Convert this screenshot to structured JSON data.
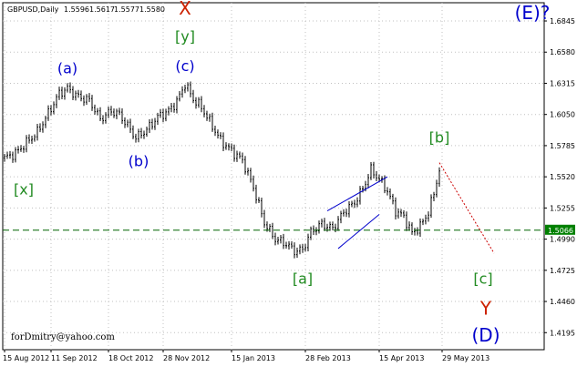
{
  "header": {
    "symbol": "GBPUSD,Daily",
    "ohlc": [
      "1.5596",
      "1.5617",
      "1.5577",
      "1.5580"
    ]
  },
  "watermark": "forDmitry@yahoo.com",
  "colors": {
    "background": "#ffffff",
    "candles": "#000000",
    "grid": "#c0c0c0",
    "support_line": "#006400",
    "projection": "#cc0000",
    "channel": "#0000cc",
    "price_badge_bg": "#008000",
    "label_blue": "#0000cc",
    "label_green": "#228b22",
    "label_red": "#cc2200"
  },
  "chart_data": {
    "type": "candlestick",
    "y_ticks": [
      "1.6845",
      "1.6580",
      "1.6315",
      "1.6050",
      "1.5785",
      "1.5520",
      "1.5255",
      "1.4990",
      "1.4725",
      "1.4460",
      "1.4195"
    ],
    "ylim": [
      1.405,
      1.7
    ],
    "x_ticks": [
      "15 Aug 2012",
      "11 Sep 2012",
      "18 Oct 2012",
      "28 Nov 2012",
      "15 Jan 2013",
      "28 Feb 2013",
      "15 Apr 2013",
      "29 May 2013"
    ],
    "x_tick_index": [
      0,
      17,
      38,
      58,
      83,
      110,
      137,
      160
    ],
    "price_path": [
      [
        0,
        1.568
      ],
      [
        4,
        1.572
      ],
      [
        8,
        1.581
      ],
      [
        12,
        1.59
      ],
      [
        16,
        1.606
      ],
      [
        20,
        1.623
      ],
      [
        23,
        1.627
      ],
      [
        27,
        1.62
      ],
      [
        31,
        1.617
      ],
      [
        35,
        1.601
      ],
      [
        39,
        1.608
      ],
      [
        42,
        1.605
      ],
      [
        46,
        1.592
      ],
      [
        48,
        1.585
      ],
      [
        52,
        1.592
      ],
      [
        56,
        1.603
      ],
      [
        60,
        1.608
      ],
      [
        63,
        1.616
      ],
      [
        66,
        1.631
      ],
      [
        69,
        1.618
      ],
      [
        72,
        1.611
      ],
      [
        75,
        1.599
      ],
      [
        79,
        1.583
      ],
      [
        83,
        1.574
      ],
      [
        87,
        1.566
      ],
      [
        91,
        1.543
      ],
      [
        95,
        1.513
      ],
      [
        99,
        1.499
      ],
      [
        103,
        1.495
      ],
      [
        106,
        1.489
      ],
      [
        109,
        1.49
      ],
      [
        112,
        1.505
      ],
      [
        116,
        1.512
      ],
      [
        120,
        1.508
      ],
      [
        124,
        1.522
      ],
      [
        128,
        1.53
      ],
      [
        131,
        1.542
      ],
      [
        134,
        1.558
      ],
      [
        137,
        1.55
      ],
      [
        140,
        1.54
      ],
      [
        143,
        1.523
      ],
      [
        146,
        1.518
      ],
      [
        149,
        1.504
      ],
      [
        152,
        1.51
      ],
      [
        155,
        1.522
      ],
      [
        157,
        1.538
      ],
      [
        159,
        1.558
      ]
    ],
    "horizontal_line": {
      "value": 1.5066,
      "label": "1.5066"
    },
    "projection_line": {
      "from": [
        159,
        1.564
      ],
      "to": [
        179,
        1.487
      ]
    },
    "channel": {
      "lower": {
        "from": [
          122,
          1.491
        ],
        "to": [
          137,
          1.52
        ]
      },
      "upper": {
        "from": [
          118,
          1.523
        ],
        "to": [
          140,
          1.552
        ]
      }
    },
    "wave_labels": [
      {
        "text": "X",
        "index": 66,
        "value": 1.69,
        "color": "label_red",
        "size": 20
      },
      {
        "text": "[y]",
        "index": 66,
        "value": 1.667,
        "color": "label_green",
        "size": 16
      },
      {
        "text": "(c)",
        "index": 66,
        "value": 1.642,
        "color": "label_blue",
        "size": 16
      },
      {
        "text": "(a)",
        "index": 23,
        "value": 1.64,
        "color": "label_blue",
        "size": 16
      },
      {
        "text": "(b)",
        "index": 49,
        "value": 1.561,
        "color": "label_blue",
        "size": 16
      },
      {
        "text": "[x]",
        "index": 7,
        "value": 1.537,
        "color": "label_green",
        "size": 16
      },
      {
        "text": "[a]",
        "index": 109,
        "value": 1.461,
        "color": "label_green",
        "size": 16
      },
      {
        "text": "[b]",
        "index": 159,
        "value": 1.581,
        "color": "label_green",
        "size": 16
      },
      {
        "text": "[c]",
        "index": 175,
        "value": 1.461,
        "color": "label_green",
        "size": 16
      },
      {
        "text": "Y",
        "index": 176,
        "value": 1.435,
        "color": "label_red",
        "size": 20
      },
      {
        "text": "(D)",
        "index": 176,
        "value": 1.412,
        "color": "label_blue",
        "size": 20
      },
      {
        "text": "(E)?",
        "index": 193,
        "value": 1.686,
        "color": "label_blue",
        "size": 20
      }
    ]
  }
}
